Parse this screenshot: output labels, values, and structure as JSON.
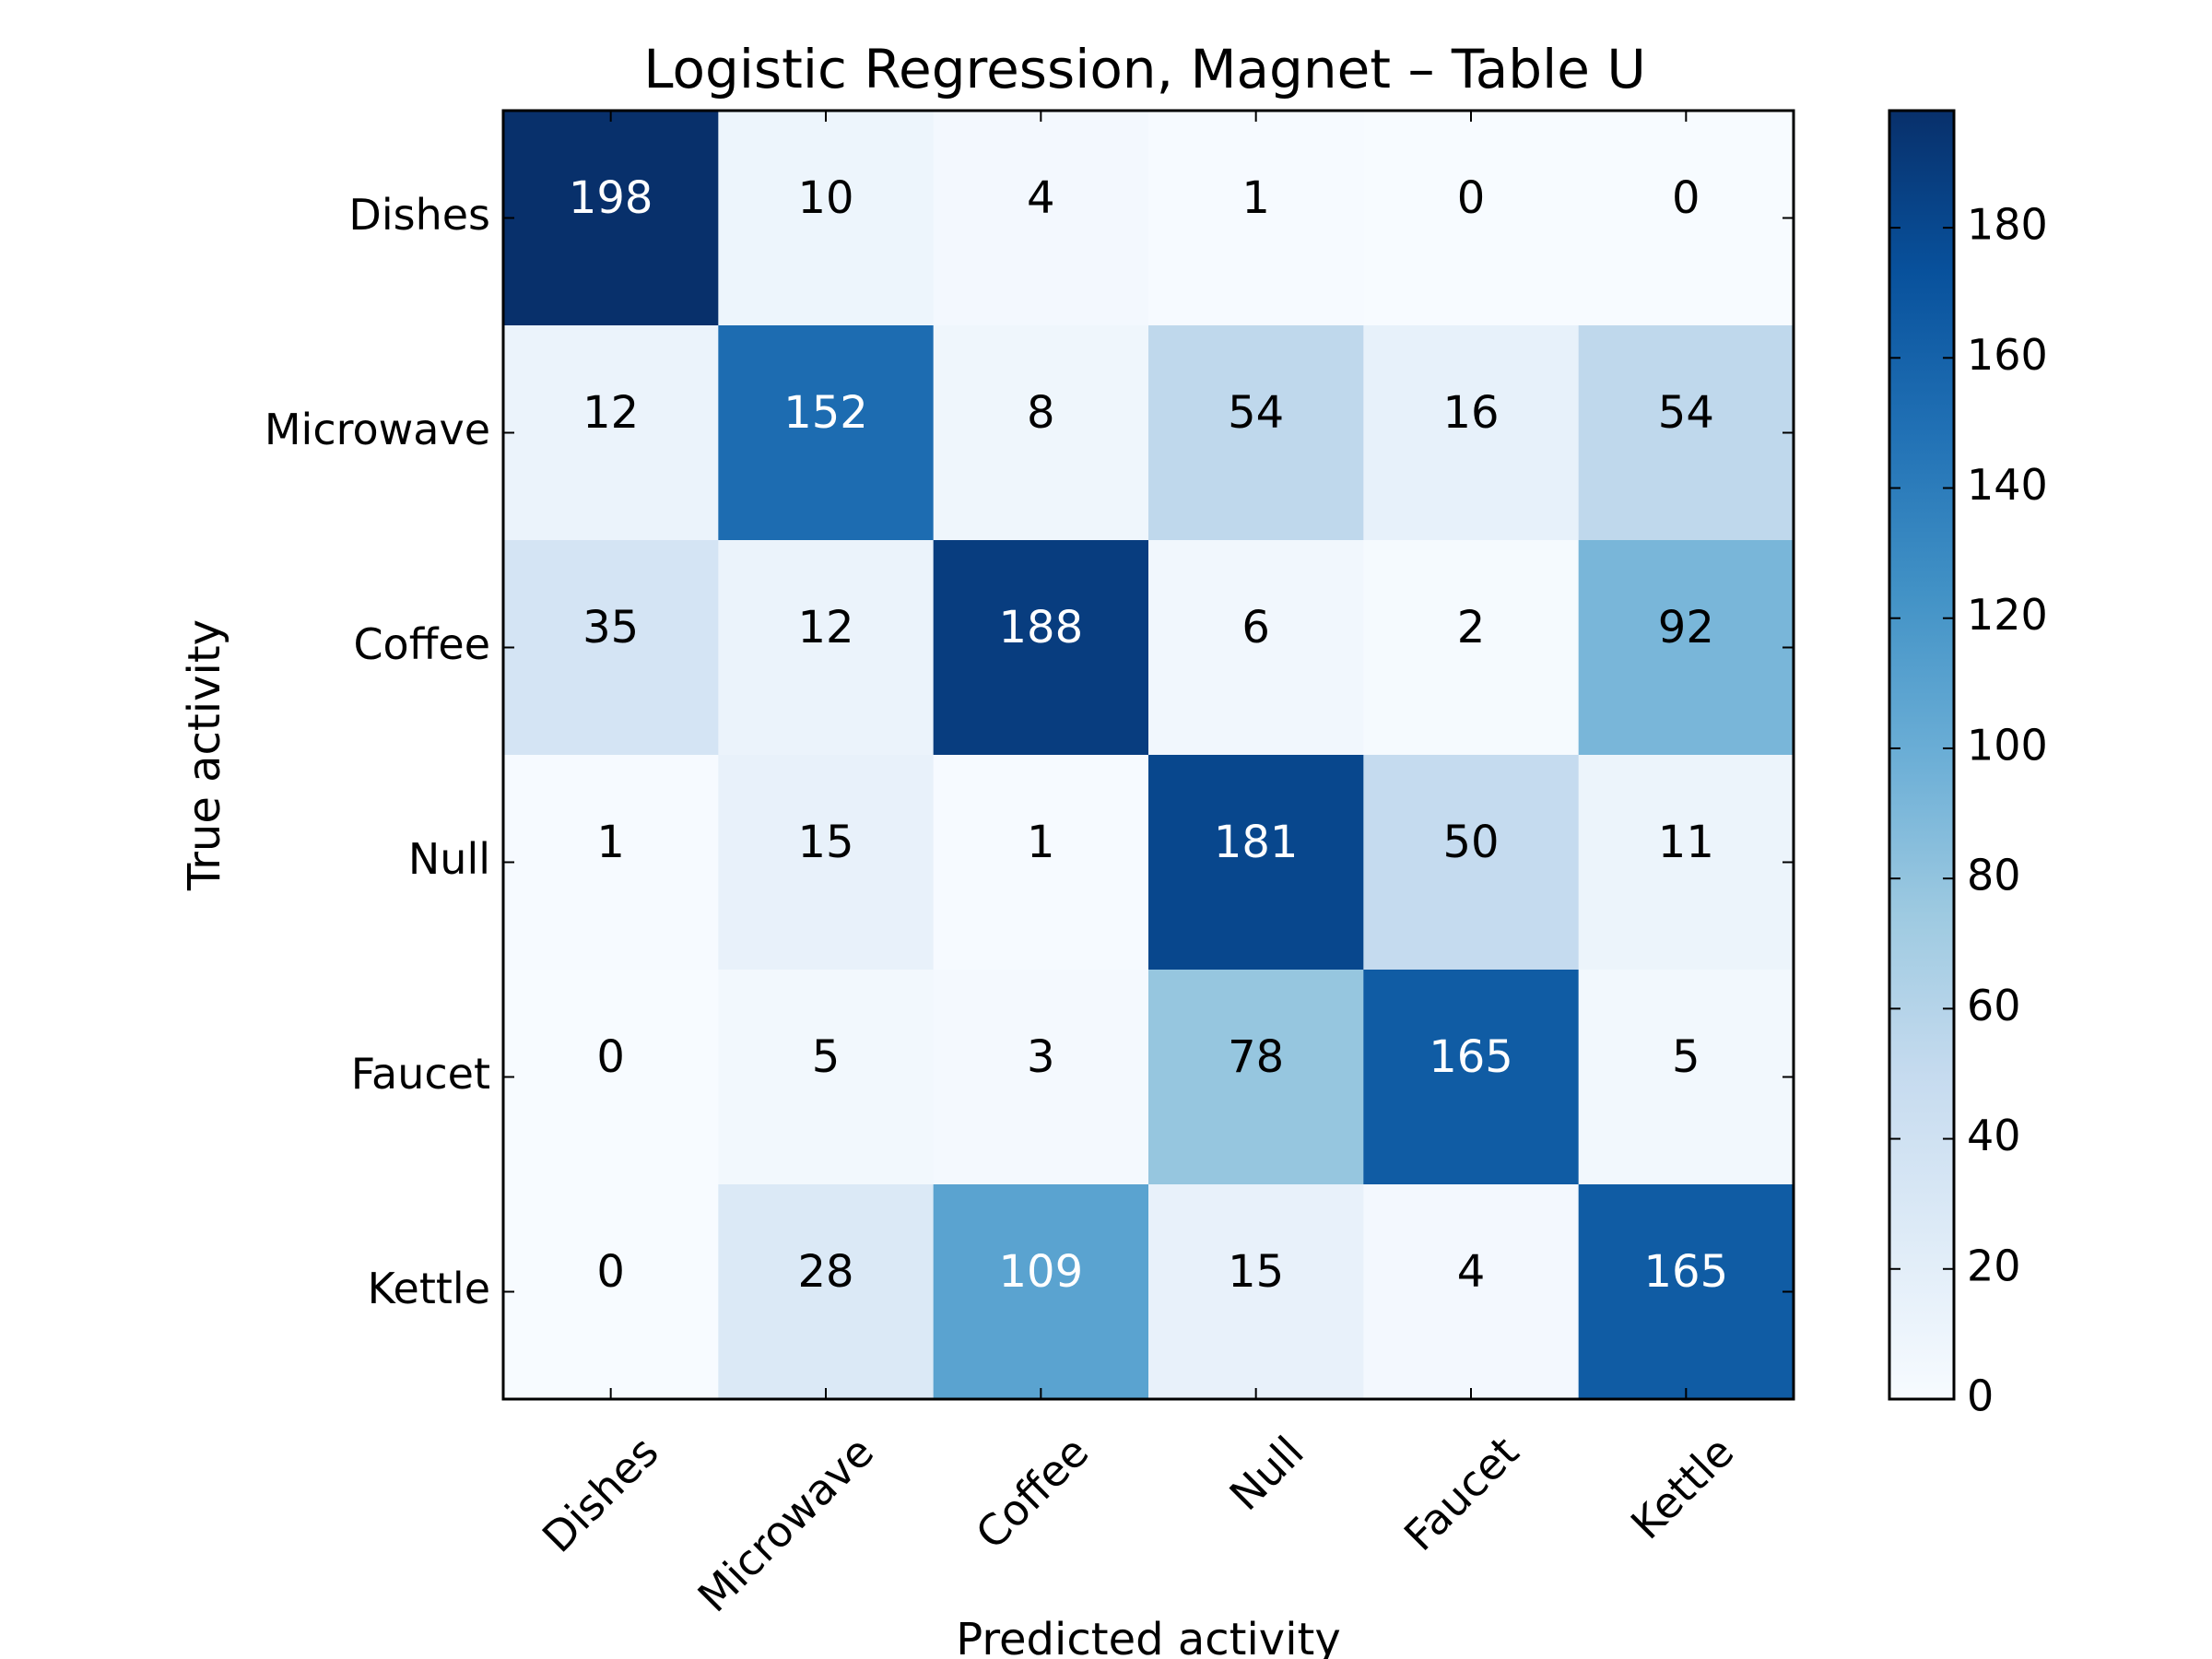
{
  "chart_data": {
    "type": "heatmap",
    "title": "Logistic Regression, Magnet – Table U",
    "xlabel": "Predicted activity",
    "ylabel": "True activity",
    "x_categories": [
      "Dishes",
      "Microwave",
      "Coffee",
      "Null",
      "Faucet",
      "Kettle"
    ],
    "y_categories": [
      "Dishes",
      "Microwave",
      "Coffee",
      "Null",
      "Faucet",
      "Kettle"
    ],
    "values": [
      [
        198,
        10,
        4,
        1,
        0,
        0
      ],
      [
        12,
        152,
        8,
        54,
        16,
        54
      ],
      [
        35,
        12,
        188,
        6,
        2,
        92
      ],
      [
        1,
        15,
        1,
        181,
        50,
        11
      ],
      [
        0,
        5,
        3,
        78,
        165,
        5
      ],
      [
        0,
        28,
        109,
        15,
        4,
        165
      ]
    ],
    "colorbar": {
      "colormap": "Blues",
      "range": [
        0,
        198
      ],
      "ticks": [
        0,
        20,
        40,
        60,
        80,
        100,
        120,
        140,
        160,
        180
      ]
    }
  }
}
